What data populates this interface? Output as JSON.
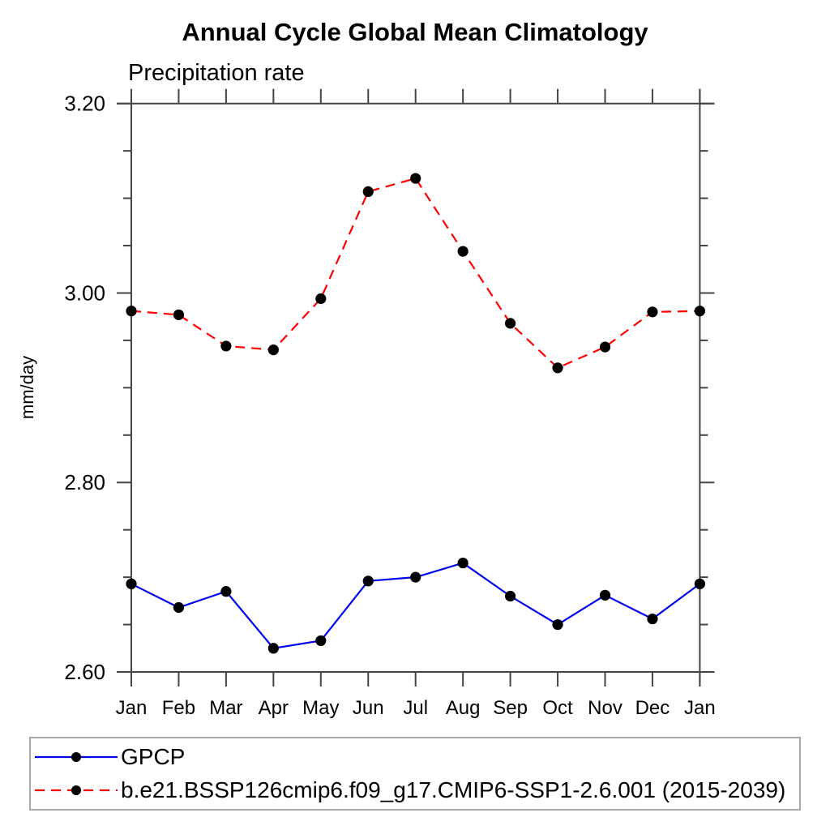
{
  "title": "Annual Cycle Global Mean Climatology",
  "subtitle": "Precipitation rate",
  "chart_data": {
    "type": "line",
    "categories": [
      "Jan",
      "Feb",
      "Mar",
      "Apr",
      "May",
      "Jun",
      "Jul",
      "Aug",
      "Sep",
      "Oct",
      "Nov",
      "Dec",
      "Jan"
    ],
    "series": [
      {
        "name": "GPCP",
        "color": "#0000ee",
        "line_style": "solid",
        "marker": "circle",
        "marker_color": "#000000",
        "values": [
          2.693,
          2.668,
          2.685,
          2.625,
          2.633,
          2.696,
          2.7,
          2.715,
          2.68,
          2.65,
          2.681,
          2.656,
          2.693
        ]
      },
      {
        "name": "b.e21.BSSP126cmip6.f09_g17.CMIP6-SSP1-2.6.001 (2015-2039)",
        "color": "#ff0000",
        "line_style": "dashed",
        "marker": "circle",
        "marker_color": "#000000",
        "values": [
          2.981,
          2.977,
          2.944,
          2.94,
          2.994,
          3.107,
          3.121,
          3.044,
          2.968,
          2.921,
          2.943,
          2.98,
          2.981
        ]
      }
    ],
    "xlabel": "",
    "ylabel": "mm/day",
    "ylim": [
      2.6,
      3.2
    ],
    "yticks": [
      2.6,
      2.8,
      3.0,
      3.2
    ],
    "ytick_labels": [
      "2.60",
      "2.80",
      "3.00",
      "3.20"
    ],
    "minor_tick_step": 0.05,
    "grid": false,
    "legend_position": "bottom",
    "axis_color": "#444444"
  }
}
